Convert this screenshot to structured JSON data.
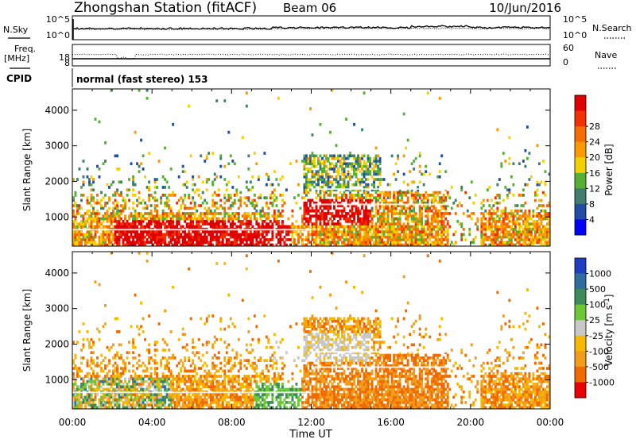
{
  "header": {
    "title": "Zhongshan Station (fitACF)",
    "beam": "Beam 06",
    "date": "10/Jun/2016"
  },
  "noise_panel": {
    "left_label": "N.Sky",
    "right_label": "N.Search",
    "left_ticks": [
      "10^5",
      "10^0"
    ],
    "right_ticks": [
      "10^5",
      "10^0"
    ]
  },
  "freq_panel": {
    "left_label_1": "Freq.",
    "left_label_2": "[MHz]",
    "right_label": "Nave",
    "left_ticks": [
      "18",
      "8"
    ],
    "right_ticks": [
      "60",
      "0"
    ]
  },
  "cpid": {
    "label": "CPID",
    "mode": "normal (fast stereo) 153"
  },
  "chart_data": [
    {
      "type": "heatmap",
      "name": "power",
      "ylabel": "Slant Range [km]",
      "xlabel": "Time UT",
      "xlim": [
        "00:00",
        "24:00"
      ],
      "ylim": [
        180,
        4600
      ],
      "y_ticks": [
        "1000",
        "2000",
        "3000",
        "4000"
      ],
      "colorbar": {
        "label": "Power [dB]",
        "ticks": [
          "4",
          "8",
          "12",
          "16",
          "20",
          "24",
          "28"
        ],
        "colors": [
          "#0000ff",
          "#1e4ea5",
          "#3f7f6f",
          "#55b034",
          "#f3d000",
          "#fb9a00",
          "#f56c00",
          "#f33000",
          "#e00000"
        ]
      }
    },
    {
      "type": "heatmap",
      "name": "velocity",
      "ylabel": "Slant Range [km]",
      "xlabel": "Time UT",
      "xlim": [
        "00:00",
        "24:00"
      ],
      "ylim": [
        180,
        4600
      ],
      "y_ticks": [
        "1000",
        "2000",
        "3000",
        "4000"
      ],
      "colorbar": {
        "label": "Velocity [m s",
        "label_sup": "-1",
        "label_close": "]",
        "ticks": [
          "1000",
          "500",
          "100",
          "25",
          "-25",
          "-100",
          "-500",
          "-1000"
        ],
        "colors": [
          "#1f3fc0",
          "#2f6fa0",
          "#3c8c5a",
          "#6cc835",
          "#c8c8c8",
          "#f7b800",
          "#f39c1a",
          "#f06a00",
          "#ea0000"
        ]
      }
    }
  ],
  "x_axis": {
    "ticks": [
      "00:00",
      "04:00",
      "08:00",
      "12:00",
      "16:00",
      "20:00",
      "00:00"
    ],
    "label": "Time UT"
  }
}
